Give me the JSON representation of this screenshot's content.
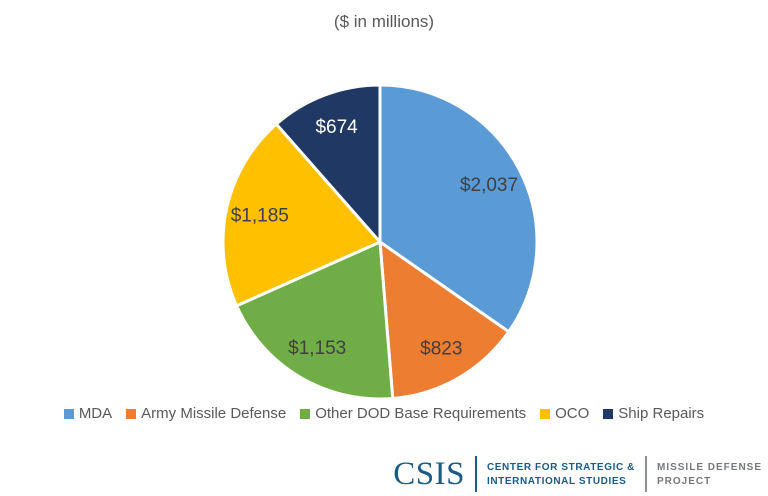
{
  "title": "($ in millions)",
  "chart_data": {
    "type": "pie",
    "title": "($ in millions)",
    "direction": "clockwise",
    "start_angle_deg": 0,
    "legend_position": "bottom",
    "series": [
      {
        "name": "MDA",
        "value": 2037,
        "label": "$2,037",
        "color": "#5B9BD5",
        "label_color": "#404040"
      },
      {
        "name": "Army Missile Defense",
        "value": 823,
        "label": "$823",
        "color": "#ED7D31",
        "label_color": "#404040"
      },
      {
        "name": "Other DOD Base Requirements",
        "value": 1153,
        "label": "$1,153",
        "color": "#70AD47",
        "label_color": "#404040"
      },
      {
        "name": "OCO",
        "value": 1185,
        "label": "$1,185",
        "color": "#FFC000",
        "label_color": "#404040"
      },
      {
        "name": "Ship Repairs",
        "value": 674,
        "label": "$674",
        "color": "#1F3864",
        "label_color": "#FFFFFF"
      }
    ]
  },
  "footer": {
    "logo": "CSIS",
    "org_line1": "CENTER FOR STRATEGIC &",
    "org_line2": "INTERNATIONAL STUDIES",
    "project_line1": "MISSILE DEFENSE",
    "project_line2": "PROJECT",
    "brand_blue": "#1B5B85",
    "brand_gray": "#75787B"
  }
}
